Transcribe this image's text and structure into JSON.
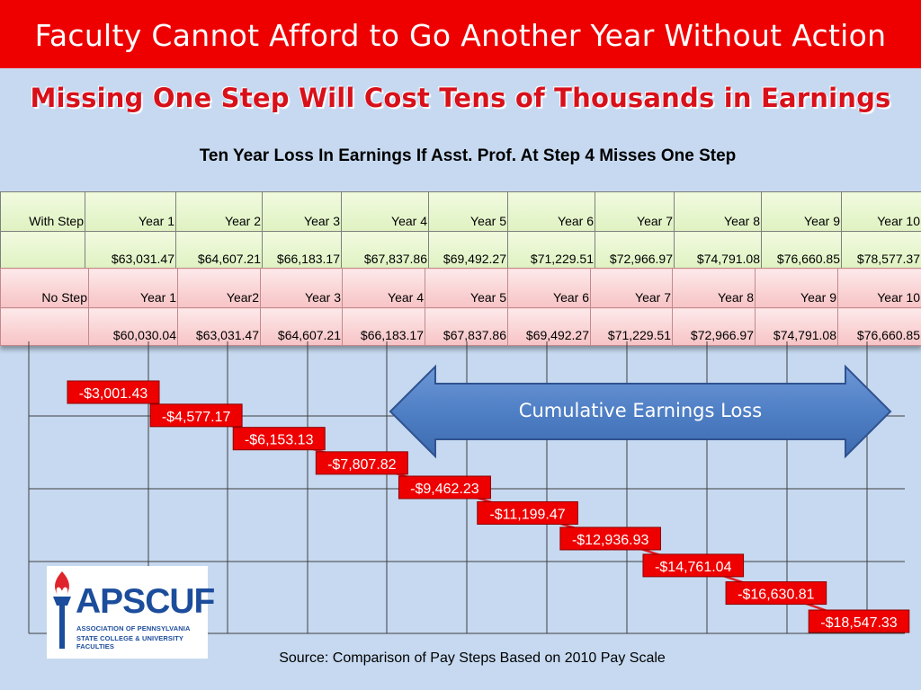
{
  "title": "Faculty Cannot Afford to Go Another Year Without Action",
  "subtitle": "Missing One Step Will Cost Tens of Thousands in Earnings",
  "table_title": "Ten Year Loss In Earnings If Asst. Prof. At Step 4 Misses One Step",
  "with_step": {
    "label": "With Step",
    "headers": [
      "Year 1",
      "Year 2",
      "Year 3",
      "Year 4",
      "Year 5",
      "Year 6",
      "Year 7",
      "Year 8",
      "Year 9",
      "Year 10"
    ],
    "values": [
      "$63,031.47",
      "$64,607.21",
      "$66,183.17",
      "$67,837.86",
      "$69,492.27",
      "$71,229.51",
      "$72,966.97",
      "$74,791.08",
      "$76,660.85",
      "$78,577.37"
    ]
  },
  "no_step": {
    "label": "No Step",
    "headers": [
      "Year 1",
      "Year2",
      "Year 3",
      "Year 4",
      "Year 5",
      "Year 6",
      "Year 7",
      "Year 8",
      "Year 9",
      "Year 10"
    ],
    "values": [
      "$60,030.04",
      "$63,031.47",
      "$64,607.21",
      "$66,183.17",
      "$67,837.86",
      "$69,492.27",
      "$71,229.51",
      "$72,966.97",
      "$74,791.08",
      "$76,660.85"
    ]
  },
  "arrow_label": "Cumulative Earnings Loss",
  "chart_data": {
    "type": "line",
    "x": [
      1,
      2,
      3,
      4,
      5,
      6,
      7,
      8,
      9,
      10
    ],
    "values": [
      -3001.43,
      -4577.17,
      -6153.13,
      -7807.82,
      -9462.23,
      -11199.47,
      -12936.93,
      -14761.04,
      -16630.81,
      -18547.33
    ],
    "data_labels": [
      "-$3,001.43",
      "-$4,577.17",
      "-$6,153.13",
      "-$7,807.82",
      "-$9,462.23",
      "-$11,199.47",
      "-$12,936.93",
      "-$14,761.04",
      "-$16,630.81",
      "-$18,547.33"
    ],
    "ylim": [
      -20000,
      0
    ],
    "grid": true,
    "line_color": "#e31b23",
    "label_bg": "#ee0000"
  },
  "logo": {
    "name": "APSCUF",
    "line1": "ASSOCIATION OF PENNSYLVANIA",
    "line2": "STATE COLLEGE & UNIVERSITY FACULTIES"
  },
  "source": "Source: Comparison of Pay Steps Based on 2010 Pay Scale"
}
